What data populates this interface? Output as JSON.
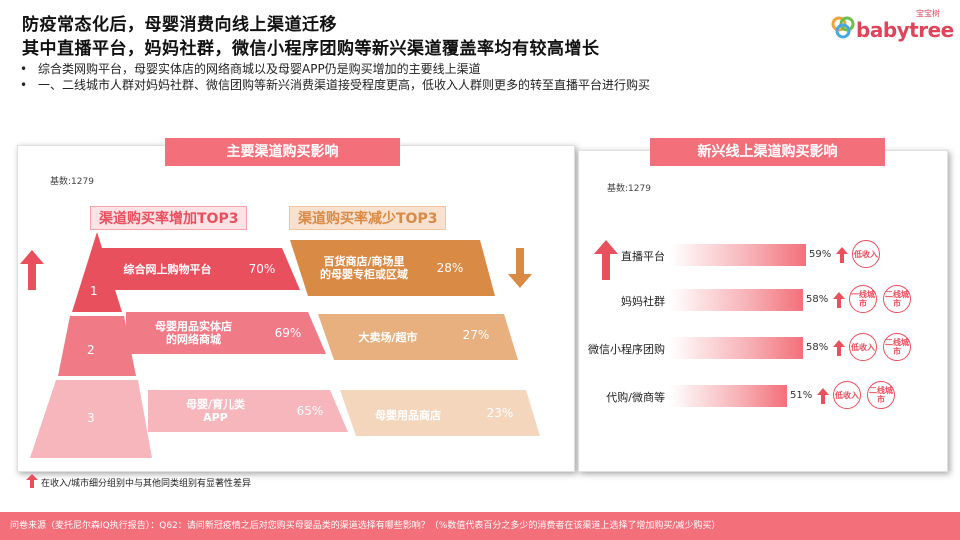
{
  "header": {
    "title_line1": "防疫常态化后，母婴消费向线上渠道迁移",
    "title_line2": "其中直播平台，妈妈社群，微信小程序团购等新兴渠道覆盖率均有较高增长",
    "bullets": [
      "综合类网购平台，母婴实体店的网络商城以及母婴APP仍是购买增加的主要线上渠道",
      "一、二线城市人群对妈妈社群、微信团购等新兴消费渠道接受程度更高，低收入人群则更多的转至直播平台进行购买"
    ],
    "bullet_marker": "•"
  },
  "logo": {
    "small_text": "宝宝树",
    "main_text": "babytree",
    "brand_color": "#e0445a"
  },
  "left_panel": {
    "title": "主要渠道购买影响",
    "base": "基数:1279",
    "increase_title": "渠道购买率增加TOP3",
    "decrease_title": "渠道购买率减少TOP3",
    "pyramid_levels": [
      "1",
      "2",
      "3"
    ],
    "increase": [
      {
        "label": "综合网上购物平台",
        "pct": "70%"
      },
      {
        "label": "母婴用品实体店的网络商城",
        "pct": "69%"
      },
      {
        "label": "母婴/育儿类APP",
        "pct": "65%"
      }
    ],
    "increase_label_lines": [
      [
        "综合网上购物平台"
      ],
      [
        "母婴用品实体店",
        "的网络商城"
      ],
      [
        "母婴/育儿类",
        "APP"
      ]
    ],
    "decrease": [
      {
        "label": "百货商店/商场里的母婴专柜或区域",
        "pct": "28%"
      },
      {
        "label": "大卖场/超市",
        "pct": "27%"
      },
      {
        "label": "母婴用品商店",
        "pct": "23%"
      }
    ],
    "decrease_label_lines": [
      [
        "百货商店/商场里",
        "的母婴专柜或区域"
      ],
      [
        "大卖场/超市"
      ],
      [
        "母婴用品商店"
      ]
    ],
    "up_arrow": "arrow-up-icon",
    "down_arrow": "arrow-down-icon",
    "colors": {
      "increase": [
        "#e8505e",
        "#f07a85",
        "#f7b6bc"
      ],
      "decrease": [
        "#d98a45",
        "#e8b07f",
        "#f4d6bd"
      ]
    }
  },
  "right_panel": {
    "title": "新兴线上渠道购买影响",
    "base": "基数:1279",
    "chart_data": {
      "type": "bar",
      "categories": [
        "直播平台",
        "妈妈社群",
        "微信小程序团购",
        "代购/微商等"
      ],
      "values": [
        59,
        58,
        58,
        51
      ],
      "value_labels": [
        "59%",
        "58%",
        "58%",
        "51%"
      ],
      "unit": "%"
    },
    "tags": [
      [
        "低收入"
      ],
      [
        "一线城市",
        "二线城市"
      ],
      [
        "低收入",
        "二线城市"
      ],
      [
        "低收入",
        "二线城市"
      ]
    ]
  },
  "note": "在收入/城市细分组别中与其他同类组别有显著性差异",
  "footer": "问卷来源（麦托尼尔森IQ执行报告）：Q62：请问新冠疫情之后对您购买母婴品类的渠道选择有哪些影响？（%数值代表百分之多少的消费者在该渠道上选择了增加购买/减少购买）"
}
